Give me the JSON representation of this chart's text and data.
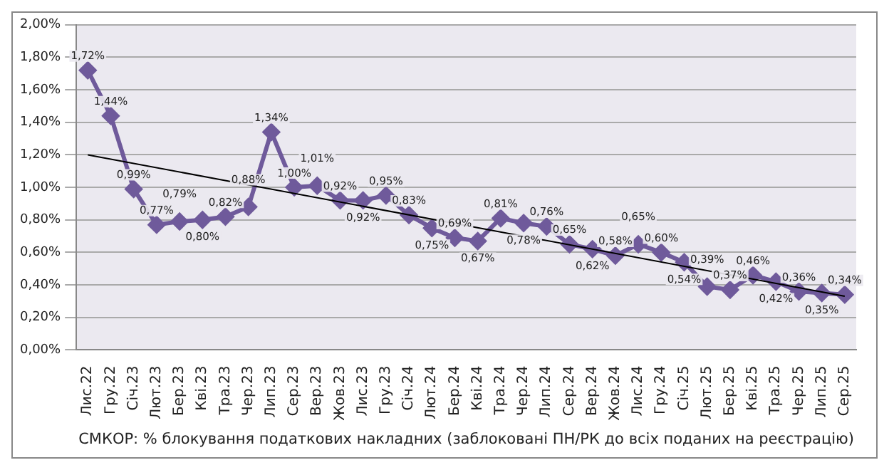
{
  "chart_data": {
    "type": "line",
    "xlabel": "СМКОР: % блокування податкових накладних (заблоковані ПН/РК до всіх поданих на реєстрацію)",
    "categories": [
      "Лис.22",
      "Гру.22",
      "Січ.23",
      "Лют.23",
      "Бер.23",
      "Кві.23",
      "Тра.23",
      "Чер.23",
      "Лип.23",
      "Сер.23",
      "Вер.23",
      "Жов.23",
      "Лис.23",
      "Гру.23",
      "Січ.24",
      "Лют.24",
      "Бер.24",
      "Кві.24",
      "Тра.24",
      "Чер.24",
      "Лип.24",
      "Сер.24",
      "Вер.24",
      "Жов.24",
      "Лис.24",
      "Гру.24",
      "Січ.25",
      "Лют.25",
      "Бер.25",
      "Кві.25",
      "Тра.25",
      "Чер.25",
      "Лип.25",
      "Сер.25"
    ],
    "series": [
      {
        "color": "#6f5a9b",
        "marker": "diamond",
        "values": [
          1.72,
          1.44,
          0.99,
          0.77,
          0.79,
          0.8,
          0.82,
          0.88,
          1.34,
          1.0,
          1.01,
          0.92,
          0.92,
          0.95,
          0.83,
          0.75,
          0.69,
          0.67,
          0.81,
          0.78,
          0.76,
          0.65,
          0.62,
          0.58,
          0.65,
          0.6,
          0.54,
          0.39,
          0.37,
          0.46,
          0.42,
          0.36,
          0.35,
          0.34
        ],
        "value_labels": [
          "1,72%",
          "1,44%",
          "0,99%",
          "0,77%",
          "0,79%",
          "0,80%",
          "0,82%",
          "0,88%",
          "1,34%",
          "1,00%",
          "1,01%",
          "0,92%",
          "0,92%",
          "0,95%",
          "0,83%",
          "0,75%",
          "0,69%",
          "0,67%",
          "0,81%",
          "0,78%",
          "0,76%",
          "0,65%",
          "0,62%",
          "0,58%",
          "0,65%",
          "0,60%",
          "0,54%",
          "0,39%",
          "0,37%",
          "0,46%",
          "0,42%",
          "0,36%",
          "0,35%",
          "0,34%"
        ]
      },
      {
        "type": "line",
        "color": "#000000",
        "marker": "none",
        "x": [
          "Лис.22",
          "Сер.25"
        ],
        "values": [
          1.2,
          0.33
        ]
      }
    ],
    "ylim": [
      0,
      2
    ],
    "yticks": [
      {
        "value": 0,
        "label": "0,00%"
      },
      {
        "value": 0.2,
        "label": "0,20%"
      },
      {
        "value": 0.4,
        "label": "0,40%"
      },
      {
        "value": 0.6,
        "label": "0,60%"
      },
      {
        "value": 0.8,
        "label": "0,80%"
      },
      {
        "value": 1,
        "label": "1,00%"
      },
      {
        "value": 1.2,
        "label": "1,20%"
      },
      {
        "value": 1.4,
        "label": "1,40%"
      },
      {
        "value": 1.6,
        "label": "1,60%"
      },
      {
        "value": 1.8,
        "label": "1,80%"
      },
      {
        "value": 2,
        "label": "2,00%"
      }
    ],
    "grid": "y",
    "legend": false
  }
}
